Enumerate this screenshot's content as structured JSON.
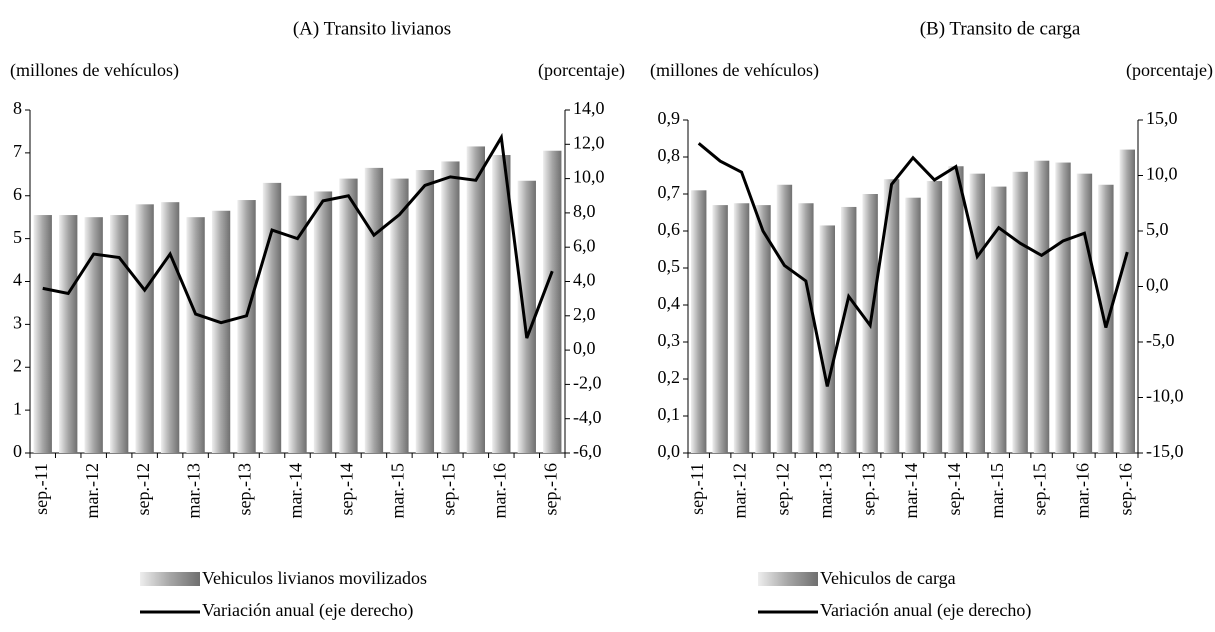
{
  "chart_data": [
    {
      "type": "combo",
      "title": "(A) Transito livianos",
      "ylabel": "(millones de vehículos)",
      "y2label": "(porcentaje)",
      "categories": [
        "sep.-11",
        null,
        "mar.-12",
        null,
        "sep.-12",
        null,
        "mar.-13",
        null,
        "sep.-13",
        null,
        "mar.-14",
        null,
        "sep.-14",
        null,
        "mar.-15",
        null,
        "sep.-15",
        null,
        "mar.-16",
        null,
        "sep.-16"
      ],
      "series": [
        {
          "name": "Vehiculos livianos movilizados",
          "type": "bar",
          "color": "#a6a6a6",
          "values": [
            5.55,
            5.55,
            5.5,
            5.55,
            5.8,
            5.85,
            5.5,
            5.65,
            5.9,
            6.3,
            6.0,
            6.1,
            6.4,
            6.65,
            6.4,
            6.6,
            6.8,
            7.15,
            6.95,
            6.35,
            7.05
          ]
        },
        {
          "name": "Variación anual (eje derecho)",
          "type": "line",
          "axis": "y2",
          "color": "#000000",
          "values": [
            3.6,
            3.3,
            5.6,
            5.4,
            3.5,
            5.6,
            2.1,
            1.6,
            2.0,
            7.0,
            6.5,
            8.7,
            9.0,
            6.7,
            7.9,
            9.6,
            10.1,
            9.9,
            12.4,
            0.7,
            4.6
          ]
        }
      ],
      "ylim": [
        0,
        8
      ],
      "yticks": [
        0,
        1,
        2,
        3,
        4,
        5,
        6,
        7,
        8
      ],
      "y2lim": [
        -6,
        14
      ],
      "y2ticks": [
        {
          "value": -6,
          "label": "-6,0"
        },
        {
          "value": -4,
          "label": "-4,0"
        },
        {
          "value": -2,
          "label": "-2,0"
        },
        {
          "value": 0,
          "label": "0,0"
        },
        {
          "value": 2,
          "label": "2,0"
        },
        {
          "value": 4,
          "label": "4,0"
        },
        {
          "value": 6,
          "label": "6,0"
        },
        {
          "value": 8,
          "label": "8,0"
        },
        {
          "value": 10,
          "label": "10,0"
        },
        {
          "value": 12,
          "label": "12,0"
        },
        {
          "value": 14,
          "label": "14,0"
        }
      ],
      "grid": false
    },
    {
      "type": "combo",
      "title": "(B) Transito de carga",
      "ylabel": "(millones de vehículos)",
      "y2label": "(porcentaje)",
      "categories": [
        "sep.-11",
        null,
        "mar.-12",
        null,
        "sep.-12",
        null,
        "mar.-13",
        null,
        "sep.-13",
        null,
        "mar.-14",
        null,
        "sep.-14",
        null,
        "mar.-15",
        null,
        "sep.-15",
        null,
        "mar.-16",
        null,
        "sep.-16"
      ],
      "series": [
        {
          "name": "Vehiculos de carga",
          "type": "bar",
          "color": "#a6a6a6",
          "values": [
            0.71,
            0.67,
            0.675,
            0.67,
            0.725,
            0.675,
            0.615,
            0.665,
            0.7,
            0.74,
            0.69,
            0.735,
            0.775,
            0.755,
            0.72,
            0.76,
            0.79,
            0.785,
            0.755,
            0.725,
            0.82
          ]
        },
        {
          "name": "Variación anual (eje derecho)",
          "type": "line",
          "axis": "y2",
          "color": "#000000",
          "values": [
            12.9,
            11.3,
            10.3,
            5.0,
            1.9,
            0.5,
            -9.0,
            -0.9,
            -3.5,
            9.2,
            11.6,
            9.6,
            10.8,
            2.7,
            5.3,
            3.9,
            2.8,
            4.1,
            4.8,
            -3.7,
            3.1
          ]
        }
      ],
      "ylim": [
        0,
        0.9
      ],
      "yticks": [
        {
          "value": 0,
          "label": "0,0"
        },
        {
          "value": 0.1,
          "label": "0,1"
        },
        {
          "value": 0.2,
          "label": "0,2"
        },
        {
          "value": 0.3,
          "label": "0,3"
        },
        {
          "value": 0.4,
          "label": "0,4"
        },
        {
          "value": 0.5,
          "label": "0,5"
        },
        {
          "value": 0.6,
          "label": "0,6"
        },
        {
          "value": 0.7,
          "label": "0,7"
        },
        {
          "value": 0.8,
          "label": "0,8"
        },
        {
          "value": 0.9,
          "label": "0,9"
        }
      ],
      "y2lim": [
        -15,
        15
      ],
      "y2ticks": [
        {
          "value": -15,
          "label": "-15,0"
        },
        {
          "value": -10,
          "label": "-10,0"
        },
        {
          "value": -5,
          "label": "-5,0"
        },
        {
          "value": 0,
          "label": "0,0"
        },
        {
          "value": 5,
          "label": "5,0"
        },
        {
          "value": 10,
          "label": "10,0"
        },
        {
          "value": 15,
          "label": "15,0"
        }
      ],
      "grid": false
    }
  ]
}
